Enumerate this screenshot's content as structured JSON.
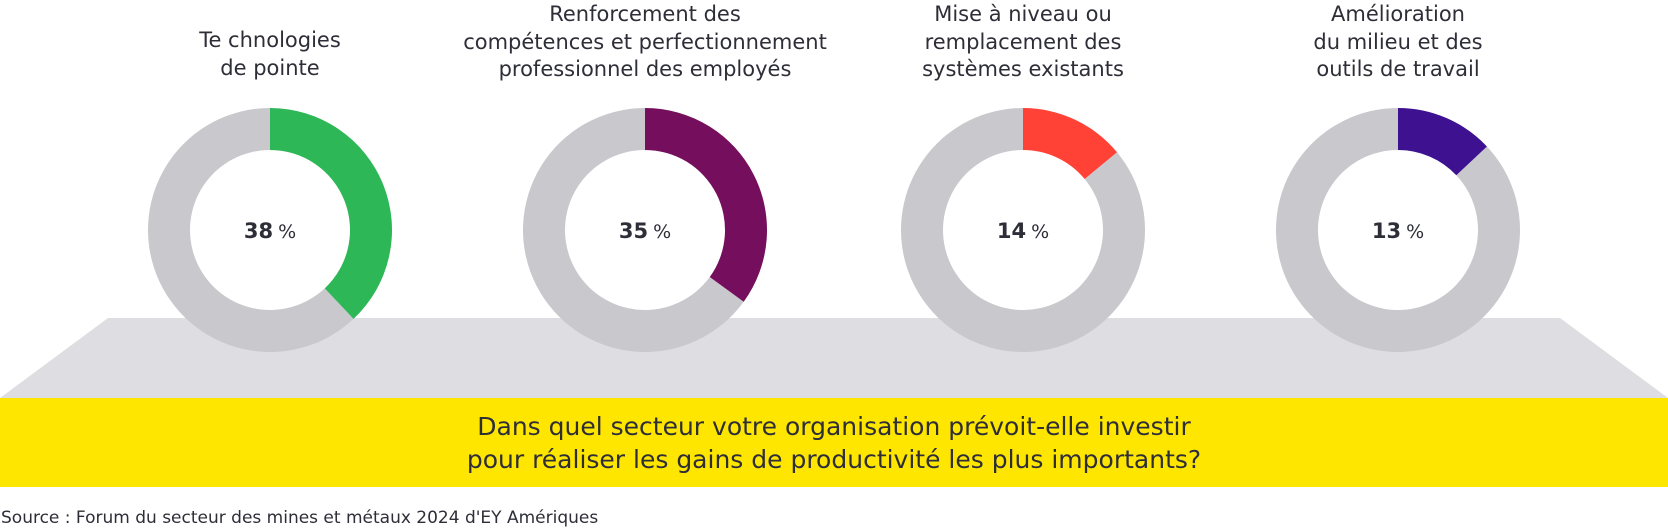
{
  "chart_data": {
    "type": "pie",
    "variant": "donut",
    "title": "Dans quel secteur votre organisation prévoit-elle investir pour réaliser les gains de productivité les plus importants?",
    "unit": "%",
    "remainder_color": "#c8c8cd",
    "series": [
      {
        "name": "Technologies de pointe",
        "label_lines": [
          "Te chnologies",
          "de pointe"
        ],
        "value": 38,
        "value_label": "38",
        "color": "#2db757"
      },
      {
        "name": "Renforcement des compétences et perfectionnement professionnel des employés",
        "label_lines": [
          "Renforcement des",
          "compétences et perfectionnement",
          "professionnel des employés"
        ],
        "value": 35,
        "value_label": "35",
        "color": "#750e5c"
      },
      {
        "name": "Mise à niveau ou remplacement des systèmes existants",
        "label_lines": [
          "Mise à niveau ou",
          "remplacement des",
          "systèmes existants"
        ],
        "value": 14,
        "value_label": "14",
        "color": "#ff4136"
      },
      {
        "name": "Amélioration du milieu et des outils de travail",
        "label_lines": [
          "Amélioration",
          "du milieu et des",
          "outils de travail"
        ],
        "value": 13,
        "value_label": "13",
        "color": "#3e1191"
      }
    ]
  },
  "question": {
    "lines": [
      "Dans quel secteur votre organisation prévoit-elle investir",
      "pour réaliser les gains de productivité les plus importants?"
    ]
  },
  "source": "Source : Forum du secteur des mines et métaux 2024 d'EY Amériques",
  "colors": {
    "platform": "#dddde2",
    "band": "#ffe600",
    "text": "#2e2e38"
  }
}
